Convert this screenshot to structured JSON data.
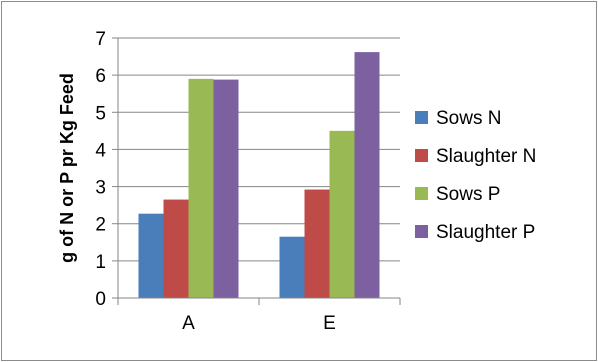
{
  "chart_data": {
    "type": "bar",
    "title": "",
    "xlabel": "",
    "ylabel": "g of N or P pr Kg Feed",
    "categories": [
      "A",
      "E"
    ],
    "ylim": [
      0,
      7
    ],
    "yticks": [
      0,
      1,
      2,
      3,
      4,
      5,
      6,
      7
    ],
    "grid": "horizontal",
    "legend_position": "right",
    "series": [
      {
        "name": "Sows N",
        "values": [
          2.27,
          1.65
        ],
        "color": "#4a7ebb"
      },
      {
        "name": "Slaughter N",
        "values": [
          2.65,
          2.92
        ],
        "color": "#be4b48"
      },
      {
        "name": "Sows P",
        "values": [
          5.9,
          4.5
        ],
        "color": "#98b954"
      },
      {
        "name": "Slaughter P",
        "values": [
          5.88,
          6.62
        ],
        "color": "#7d60a0"
      }
    ]
  }
}
